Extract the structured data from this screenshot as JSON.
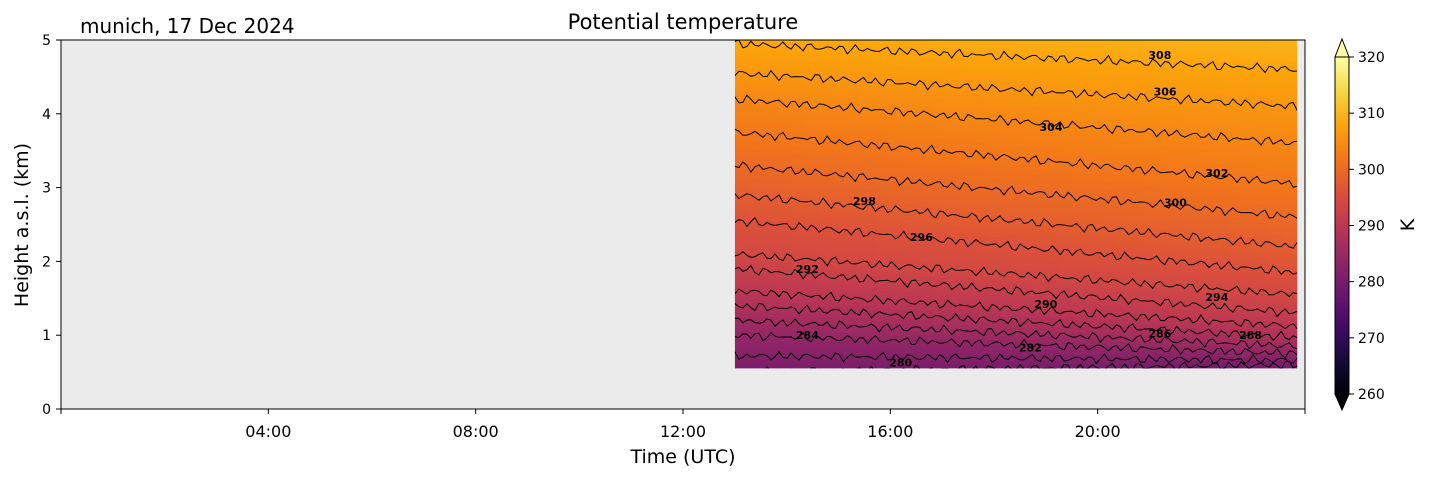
{
  "chart_data": {
    "type": "heatmap",
    "title": "Potential temperature",
    "location_label": "munich, 17 Dec 2024",
    "xlabel": "Time (UTC)",
    "ylabel": "Height a.s.l. (km)",
    "xlim_hours": [
      0,
      24
    ],
    "ylim_km": [
      0,
      5
    ],
    "x_ticks": [
      {
        "hour": 4,
        "label": "04:00"
      },
      {
        "hour": 8,
        "label": "08:00"
      },
      {
        "hour": 12,
        "label": "12:00"
      },
      {
        "hour": 16,
        "label": "16:00"
      },
      {
        "hour": 20,
        "label": "20:00"
      }
    ],
    "y_ticks": [
      {
        "value": 0,
        "label": "0"
      },
      {
        "value": 1,
        "label": "1"
      },
      {
        "value": 2,
        "label": "2"
      },
      {
        "value": 3,
        "label": "3"
      },
      {
        "value": 4,
        "label": "4"
      },
      {
        "value": 5,
        "label": "5"
      }
    ],
    "data_extent": {
      "time_start_h": 13.0,
      "time_end_h": 23.85,
      "height_min_km": 0.55,
      "height_max_km": 5.0
    },
    "colormap": "inferno",
    "colorbar": {
      "label": "K",
      "min": 260,
      "max": 320,
      "extend": "both",
      "ticks": [
        {
          "value": 260,
          "label": "260"
        },
        {
          "value": 270,
          "label": "270"
        },
        {
          "value": 280,
          "label": "280"
        },
        {
          "value": 290,
          "label": "290"
        },
        {
          "value": 300,
          "label": "300"
        },
        {
          "value": 310,
          "label": "310"
        },
        {
          "value": 320,
          "label": "320"
        }
      ]
    },
    "contour_interval": 2,
    "contours": [
      {
        "level": 280,
        "h_start": 0.5,
        "h_end": 0.6
      },
      {
        "level": 282,
        "h_start": 0.72,
        "h_end": 0.66
      },
      {
        "level": 284,
        "h_start": 1.0,
        "h_end": 0.75
      },
      {
        "level": 286,
        "h_start": 1.2,
        "h_end": 0.85
      },
      {
        "level": 288,
        "h_start": 1.4,
        "h_end": 0.97
      },
      {
        "level": 290,
        "h_start": 1.6,
        "h_end": 1.12
      },
      {
        "level": 292,
        "h_start": 1.9,
        "h_end": 1.3
      },
      {
        "level": 294,
        "h_start": 2.1,
        "h_end": 1.55
      },
      {
        "level": 296,
        "h_start": 2.55,
        "h_end": 1.85
      },
      {
        "level": 298,
        "h_start": 2.9,
        "h_end": 2.2
      },
      {
        "level": 300,
        "h_start": 3.3,
        "h_end": 2.6
      },
      {
        "level": 302,
        "h_start": 3.75,
        "h_end": 3.05
      },
      {
        "level": 304,
        "h_start": 4.2,
        "h_end": 3.6
      },
      {
        "level": 306,
        "h_start": 4.55,
        "h_end": 4.1
      },
      {
        "level": 308,
        "h_start": 4.95,
        "h_end": 4.6
      }
    ],
    "contour_labels": [
      {
        "text": "280",
        "hour": 16.2,
        "km": 0.63
      },
      {
        "text": "282",
        "hour": 18.7,
        "km": 0.83
      },
      {
        "text": "284",
        "hour": 14.4,
        "km": 1.0
      },
      {
        "text": "286",
        "hour": 21.2,
        "km": 1.02
      },
      {
        "text": "288",
        "hour": 22.95,
        "km": 1.0
      },
      {
        "text": "290",
        "hour": 19.0,
        "km": 1.42
      },
      {
        "text": "292",
        "hour": 14.4,
        "km": 1.9
      },
      {
        "text": "294",
        "hour": 22.3,
        "km": 1.52
      },
      {
        "text": "296",
        "hour": 16.6,
        "km": 2.33
      },
      {
        "text": "298",
        "hour": 15.5,
        "km": 2.82
      },
      {
        "text": "300",
        "hour": 21.5,
        "km": 2.8
      },
      {
        "text": "302",
        "hour": 22.3,
        "km": 3.2
      },
      {
        "text": "304",
        "hour": 19.1,
        "km": 3.82
      },
      {
        "text": "306",
        "hour": 21.3,
        "km": 4.3
      },
      {
        "text": "308",
        "hour": 21.2,
        "km": 4.8
      }
    ]
  }
}
